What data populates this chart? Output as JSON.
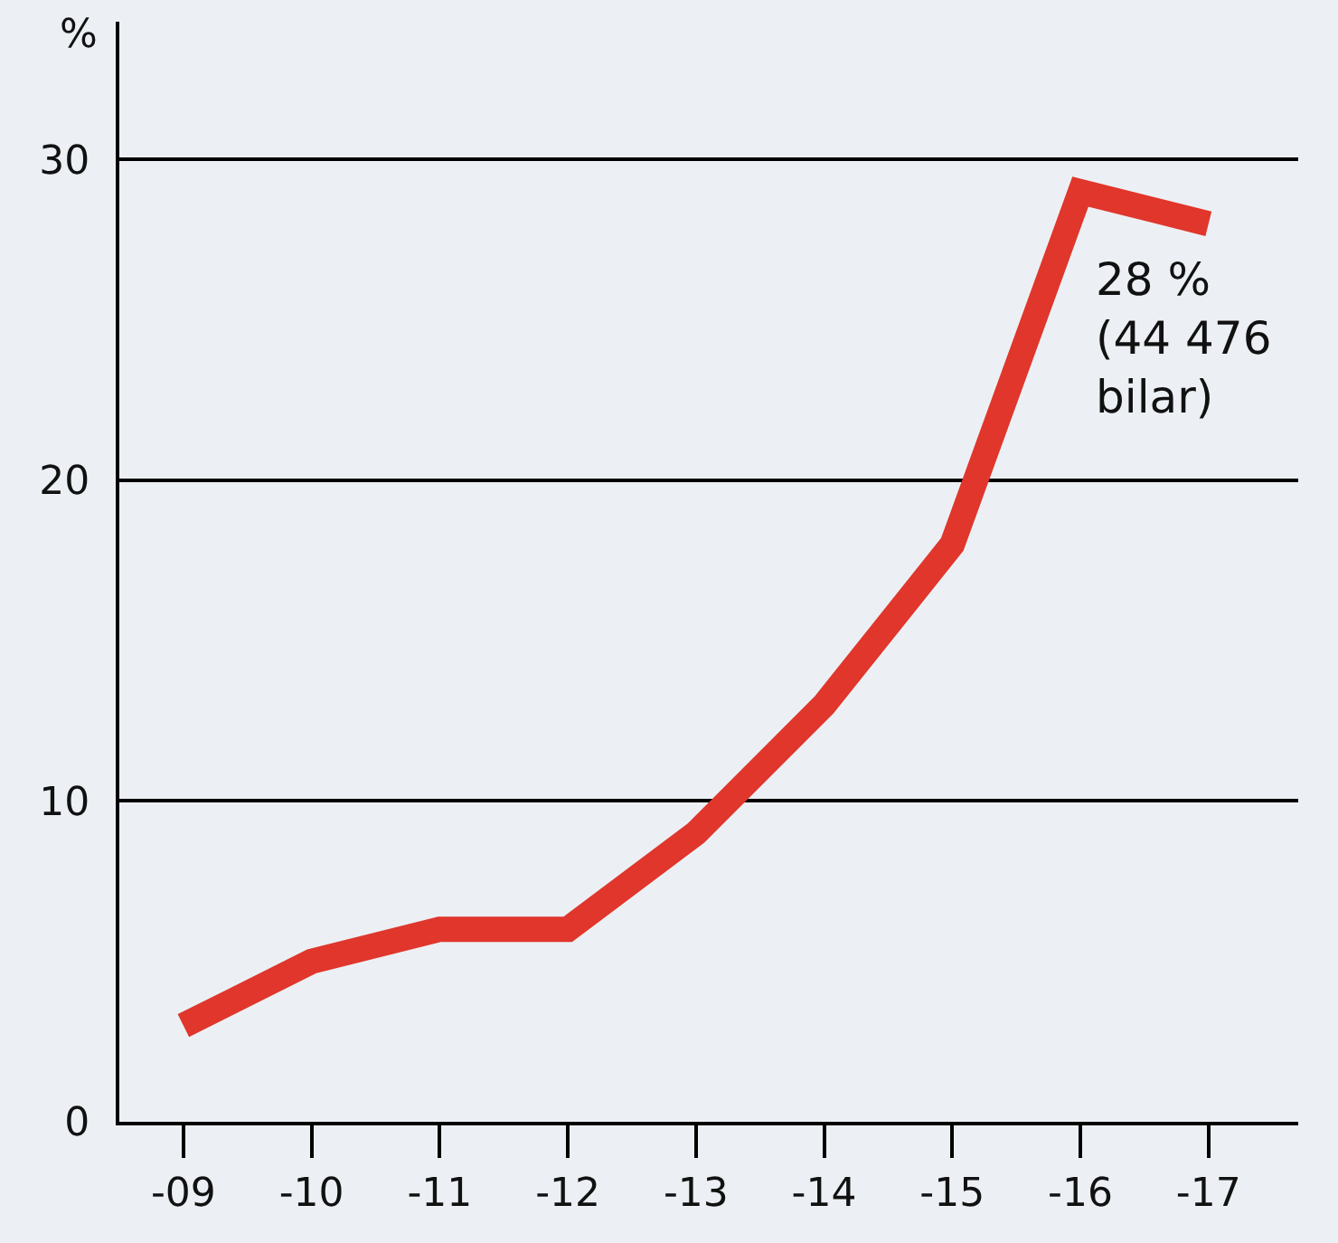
{
  "chart_data": {
    "type": "line",
    "ylabel": "%",
    "categories": [
      "-09",
      "-10",
      "-11",
      "-12",
      "-13",
      "-14",
      "-15",
      "-16",
      "-17"
    ],
    "series": [
      {
        "color": "#e0362c",
        "values": [
          3,
          5,
          6,
          6,
          9,
          13,
          18,
          29,
          28
        ]
      }
    ],
    "ylim": [
      0,
      34.3
    ],
    "yticks": [
      0,
      10,
      20,
      30
    ],
    "grid": "y",
    "marker": "none",
    "line_style": "solid",
    "annotations": [
      {
        "text": "28 %\n(44 476\nbilar)",
        "x": "-17",
        "y": 28
      }
    ]
  }
}
